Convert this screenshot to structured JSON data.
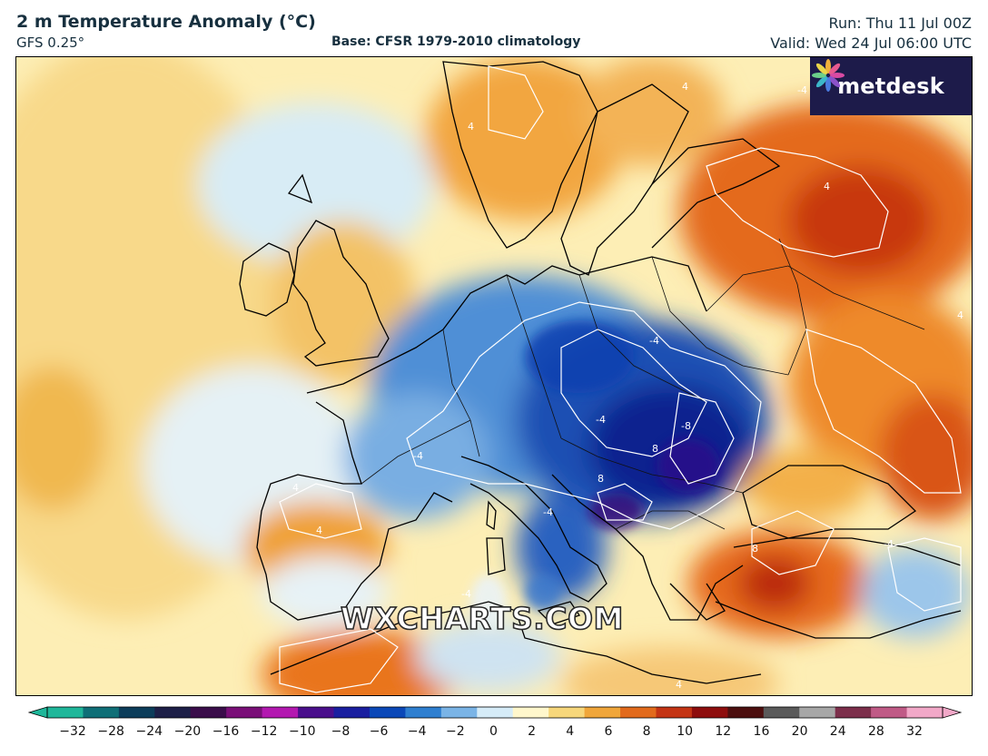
{
  "header": {
    "title": "2 m Temperature Anomaly (°C)",
    "model": "GFS 0.25°",
    "base": "Base: CFSR 1979-2010 climatology",
    "run": "Run: Thu 11 Jul 00Z",
    "valid": "Valid: Wed 24 Jul 06:00 UTC"
  },
  "logo": {
    "text": "metdesk",
    "icon": "metdesk-flower-icon"
  },
  "watermark": "WXCHARTS.COM",
  "colorbar": {
    "ticks": [
      "−32",
      "−28",
      "−24",
      "−20",
      "−16",
      "−12",
      "−10",
      "−8",
      "−6",
      "−4",
      "−2",
      "0",
      "2",
      "4",
      "6",
      "8",
      "10",
      "12",
      "16",
      "20",
      "24",
      "28",
      "32"
    ],
    "colors": [
      "#1fb79a",
      "#0f6f77",
      "#0c3d5a",
      "#1d1f47",
      "#3a0d4a",
      "#7a0f78",
      "#b318b0",
      "#4a0f8c",
      "#1a1fa0",
      "#0b48b8",
      "#2f7fd0",
      "#7ab4e6",
      "#d6ecf8",
      "#fff7cc",
      "#f7d77b",
      "#f0a63a",
      "#e26a1c",
      "#c43414",
      "#8e0d0d",
      "#4c0f0f",
      "#5a5a5a",
      "#a7a7a7",
      "#7c2f4b",
      "#c05a86",
      "#f2a8c8"
    ]
  },
  "contour_labels": [
    {
      "text": "4"
    },
    {
      "text": "4"
    },
    {
      "text": "4"
    },
    {
      "text": "4"
    },
    {
      "text": "4"
    },
    {
      "text": "4"
    },
    {
      "text": "-4"
    },
    {
      "text": "-4"
    },
    {
      "text": "-4"
    },
    {
      "text": "-4"
    },
    {
      "text": "-4"
    },
    {
      "text": "-4"
    },
    {
      "text": "-8"
    },
    {
      "text": "8"
    },
    {
      "text": "8"
    },
    {
      "text": "8"
    },
    {
      "text": "-4"
    },
    {
      "text": "4"
    }
  ]
}
